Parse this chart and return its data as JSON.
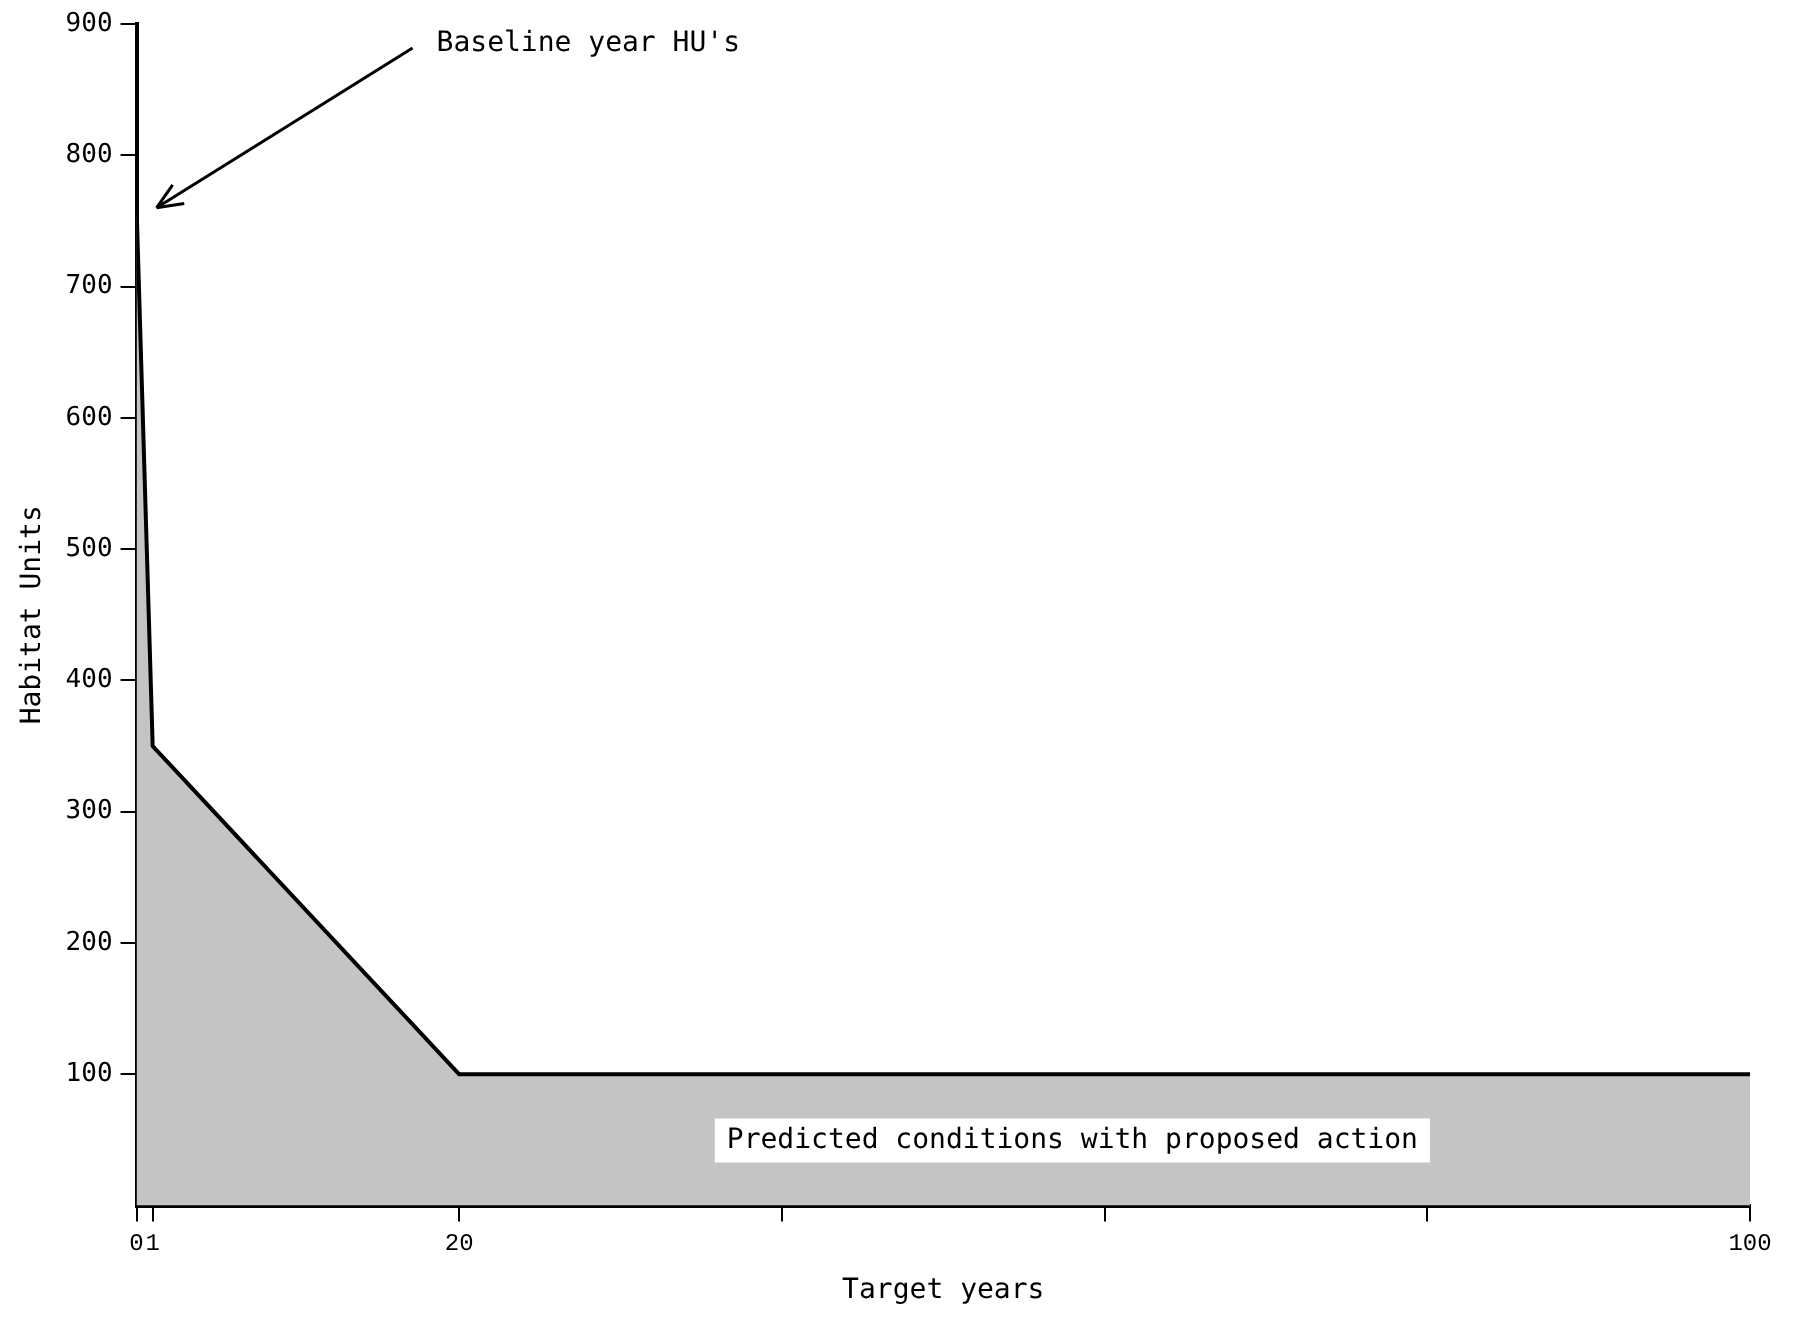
{
  "chart_data": {
    "type": "area",
    "xlabel": "Target years",
    "ylabel": "Habitat Units",
    "x": [
      0,
      1,
      20,
      100
    ],
    "values": [
      760,
      350,
      100,
      100
    ],
    "color": "#c4c4c4",
    "xlim": [
      0,
      100
    ],
    "xticks": [
      0,
      1,
      20,
      {
        "value": 40,
        "label": null
      },
      {
        "value": 60,
        "label": null
      },
      {
        "value": 80,
        "label": null
      },
      100
    ],
    "ylim": [
      0,
      900
    ],
    "yticks": [
      100,
      200,
      300,
      400,
      500,
      600,
      700,
      800,
      900
    ],
    "grid": false,
    "legend": false,
    "marker": "none",
    "line_style": "solid",
    "annotations": [
      "Baseline year HU's",
      "Predicted conditions with proposed action"
    ]
  }
}
